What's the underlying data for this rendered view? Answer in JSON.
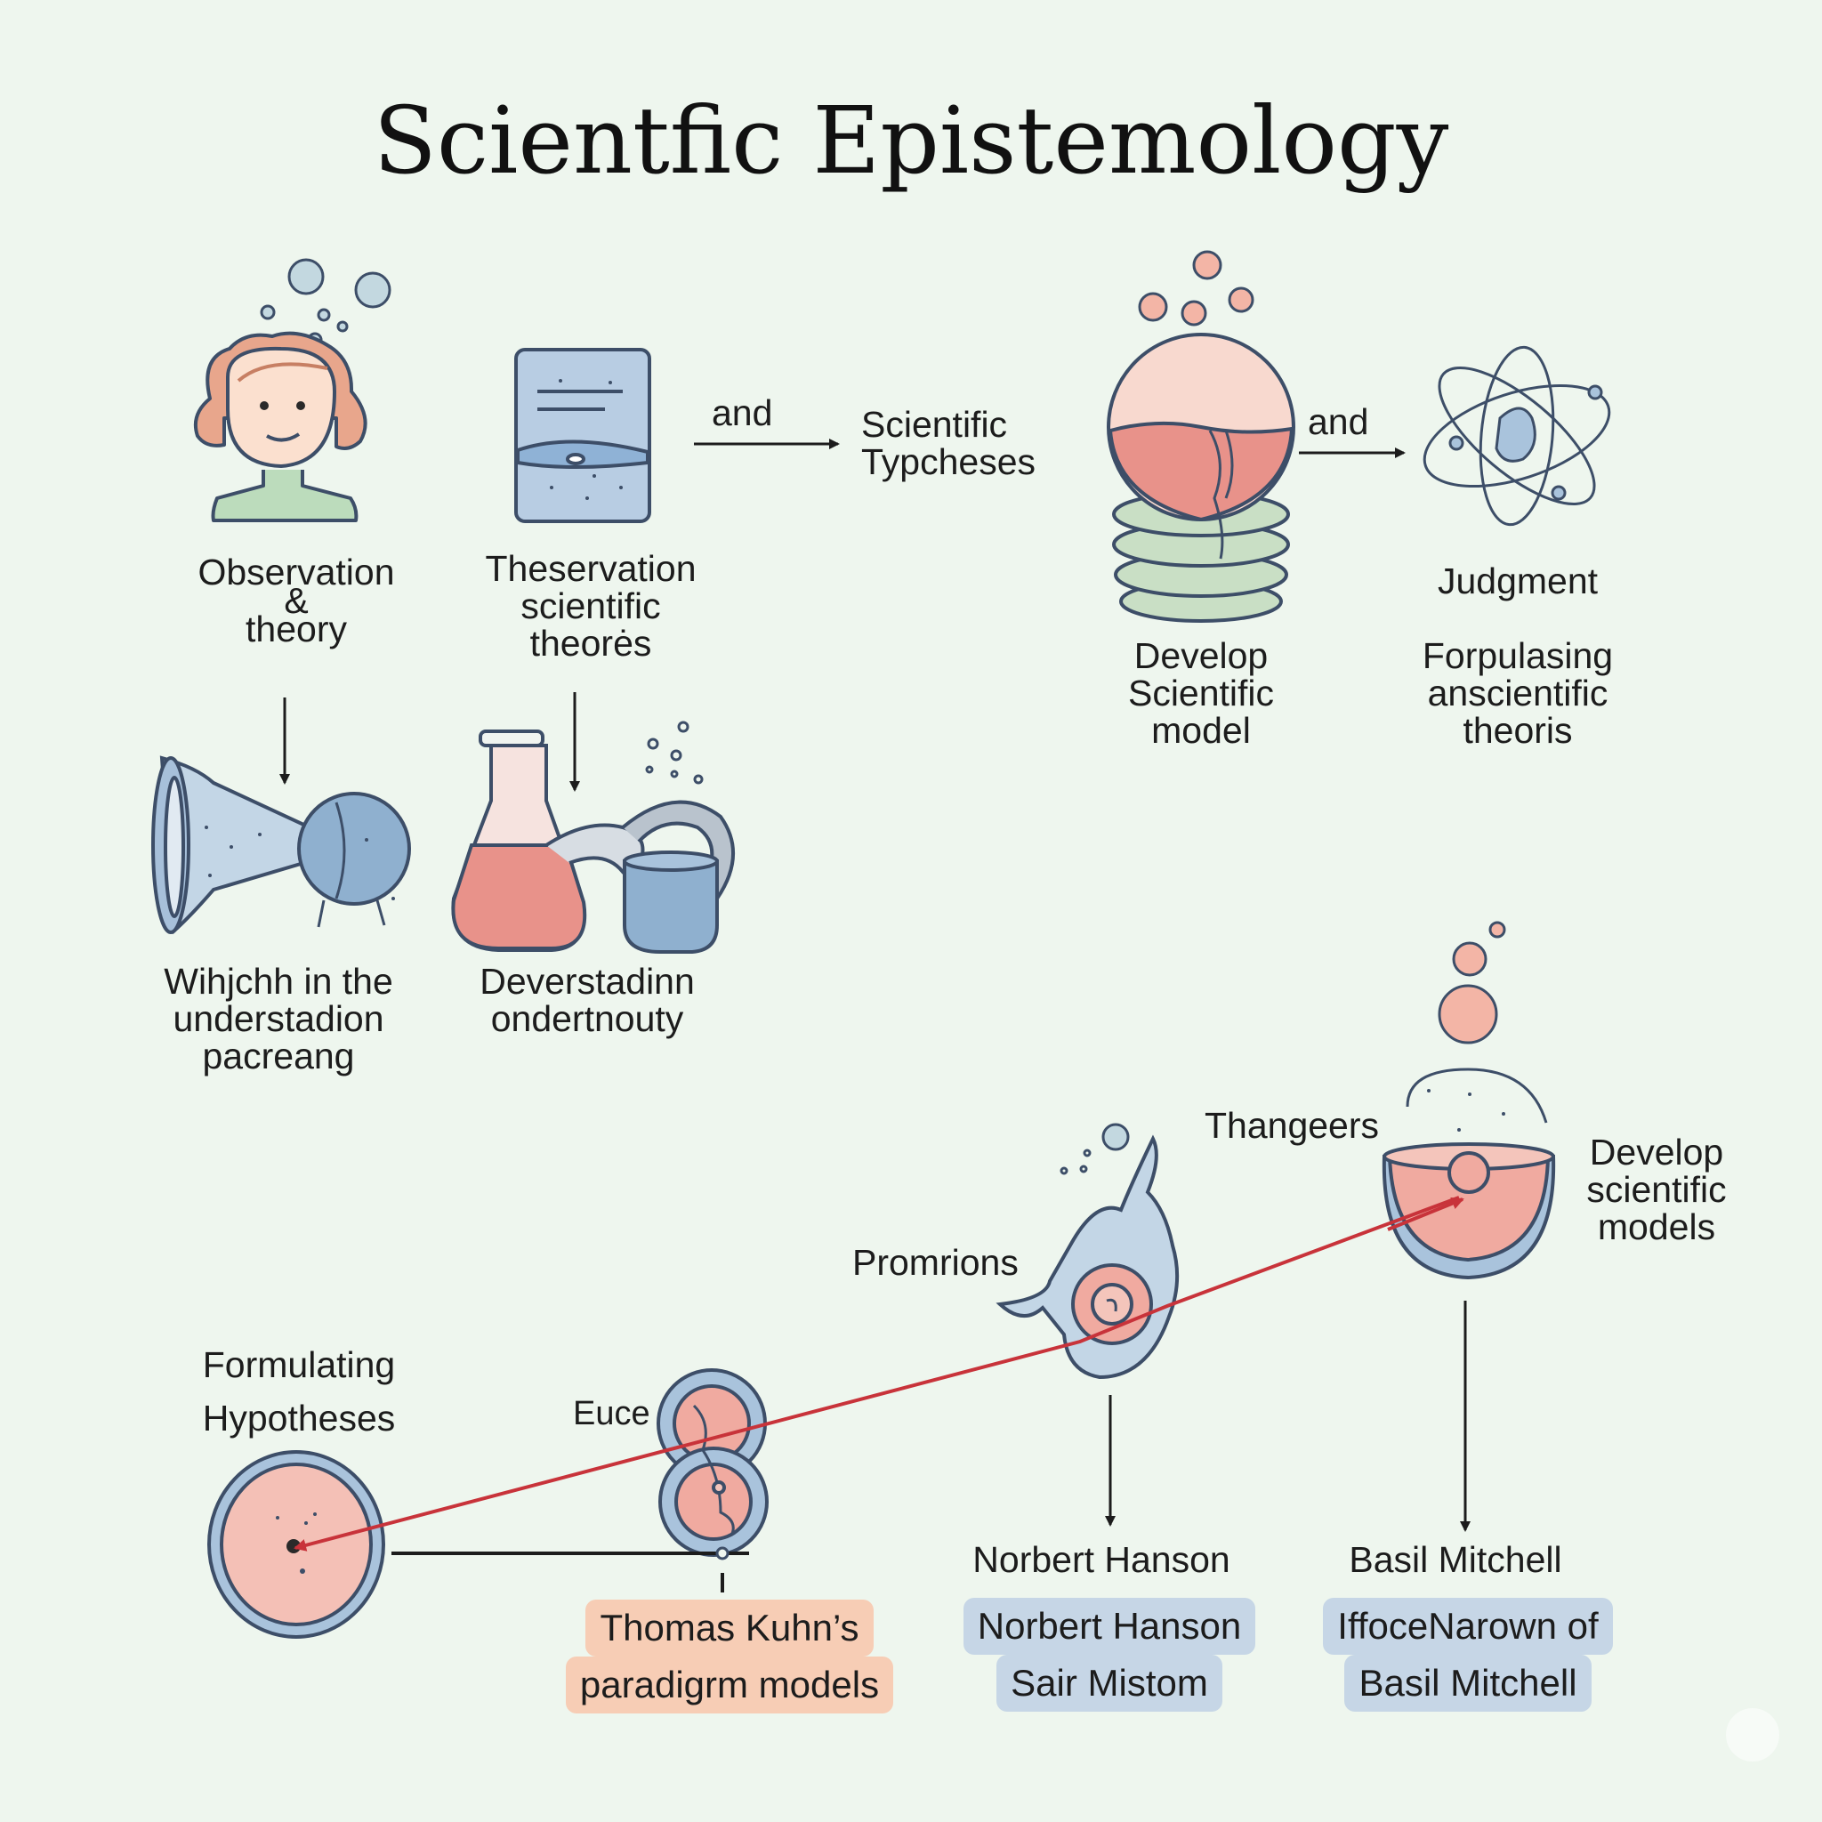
{
  "title": "Scientfic Epistemology",
  "top_row": {
    "observation": [
      "Observation",
      "&",
      "theory"
    ],
    "theservation": [
      "Theservation",
      "scientific",
      "theorės"
    ],
    "and_1": "and",
    "scientific_hypotheses": [
      "Scientific",
      "Typcheses"
    ],
    "develop_model": [
      "Develop",
      "Scientific",
      "model"
    ],
    "and_2": "and",
    "judgment": "Judgment",
    "formulating_theories": [
      "Forpulasing",
      "anscientific",
      "theoris"
    ]
  },
  "middle_row": {
    "which_understanding": [
      "Wihjchh in the",
      "understadion",
      "pacreang"
    ],
    "deverstadinn": [
      "Deverstadinn",
      "ondertnouty"
    ]
  },
  "bottom": {
    "formulating_hypotheses": [
      "Formulating",
      "Hypotheses"
    ],
    "euce": "Euce",
    "promrions": "Promrions",
    "thangeers": "Thangeers",
    "develop_models": [
      "Develop",
      "scientific",
      "models"
    ],
    "norbert_label": "Norbert Hanson",
    "basil_label": "Basil Mitchell",
    "kuhn_box": [
      "Thomas Kuhn’s",
      "paradigrm models"
    ],
    "norbert_box": [
      "Norbert Hanson",
      "Sair Mistom"
    ],
    "basil_box": [
      "IffoceNarown of",
      "Basil Mitchell"
    ]
  },
  "colors": {
    "background": "#eef6ee",
    "accent_red": "#c8333a",
    "pink_fill": "#f0b0a8",
    "blue_fill": "#a9c3dc",
    "green_fill": "#cfe6cf",
    "outline": "#3d4e68"
  }
}
